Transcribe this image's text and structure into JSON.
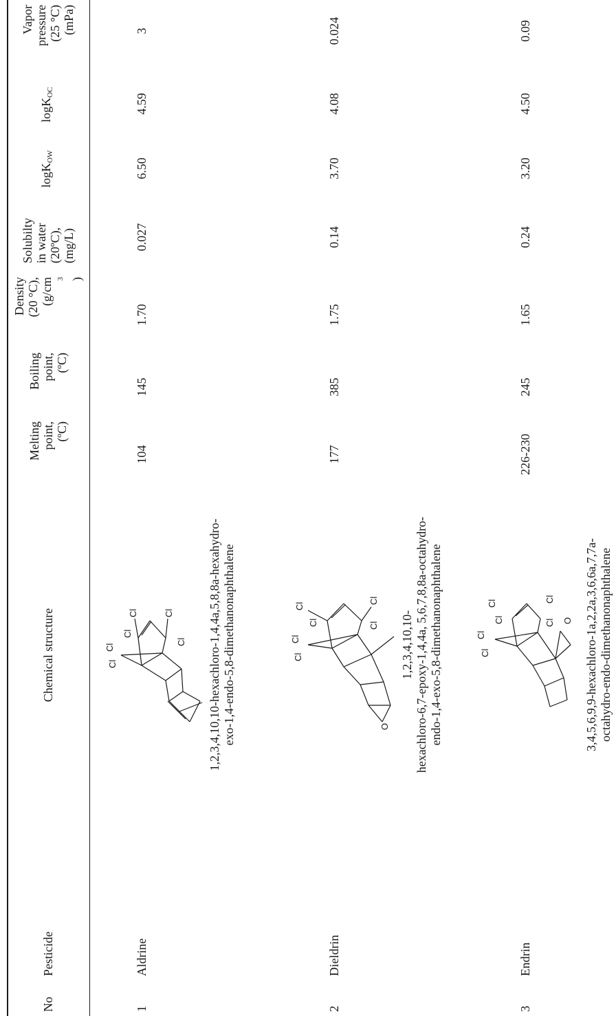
{
  "table": {
    "headers": {
      "no": "No",
      "pesticide": "Pesticide",
      "structure": "Chemical structure",
      "melting": [
        "Melting",
        "point,",
        "(ºC)"
      ],
      "boiling": [
        "Boiling",
        "point,",
        "(ºC)"
      ],
      "density": [
        "Density",
        "(20 °C),",
        "(g/cm",
        "3",
        ")"
      ],
      "solubility": [
        "Solubilty",
        "in water",
        "(20ºC),",
        "(mg/L)"
      ],
      "logkow": [
        "logK",
        "OW"
      ],
      "logkoc": [
        "logK",
        "OC"
      ],
      "vapor": [
        "Vapor",
        "pressure",
        "(25 °C)",
        "(mPa)"
      ]
    },
    "rows": [
      {
        "no": "1",
        "pesticide": "Aldrine",
        "iupac": [
          "1,2,3,4,10,10-hexachloro-1,4,4a,5,8,8a-hexahydro-",
          "exo-1,4-endo-5,8-dimethanonaphthalene"
        ],
        "melting": "104",
        "boiling": "145",
        "density": "1.70",
        "solubility": "0.027",
        "logkow": "6.50",
        "logkoc": "4.59",
        "vapor": "3"
      },
      {
        "no": "2",
        "pesticide": "Dieldrin",
        "iupac": [
          "1,2,3,4,10,10-",
          "hexachloro-6,7-epoxy-1,4,4a, 5,6,7,8,8a-octahydro-",
          "endo-1,4-exo-5,8-dimethanonaphthalene"
        ],
        "melting": "177",
        "boiling": "385",
        "density": "1.75",
        "solubility": "0.14",
        "logkow": "3.70",
        "logkoc": "4.08",
        "vapor": "0.024"
      },
      {
        "no": "3",
        "pesticide": "Endrin",
        "iupac": [
          "3,4,5,6,9,9-hexachloro-1a,2,2a,3,6,6a,7,7a-",
          "octahydro-endo-dimethanonaphthalene"
        ],
        "melting": "226-230",
        "boiling": "245",
        "density": "1.65",
        "solubility": "0.24",
        "logkow": "3.20",
        "logkoc": "4.50",
        "vapor": "0.09"
      }
    ],
    "atom_labels": {
      "chlorine": "Cl",
      "oxygen": "O"
    }
  }
}
